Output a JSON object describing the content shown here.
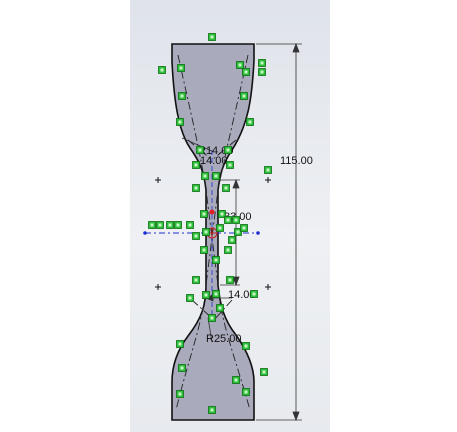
{
  "sketch": {
    "dimensions": {
      "overall_length": "115.00",
      "neck_radius_top": "R14.00",
      "neck_radius_top_sub": "14.00",
      "neck_length": "33.00",
      "neck_width": "14.00",
      "shoulder_radius_bottom": "R25.00"
    }
  },
  "colors": {
    "viewport_top": "#dfe3ea",
    "part_fill": "#a9abbd",
    "relation_green": "#2ebf3a",
    "axis_blue": "#1f2fd6",
    "point_red": "#e02020",
    "line_black": "#111111"
  },
  "icons": {
    "relation": "coincident-relation-icon",
    "origin": "origin-icon",
    "point": "sketch-point-icon"
  }
}
